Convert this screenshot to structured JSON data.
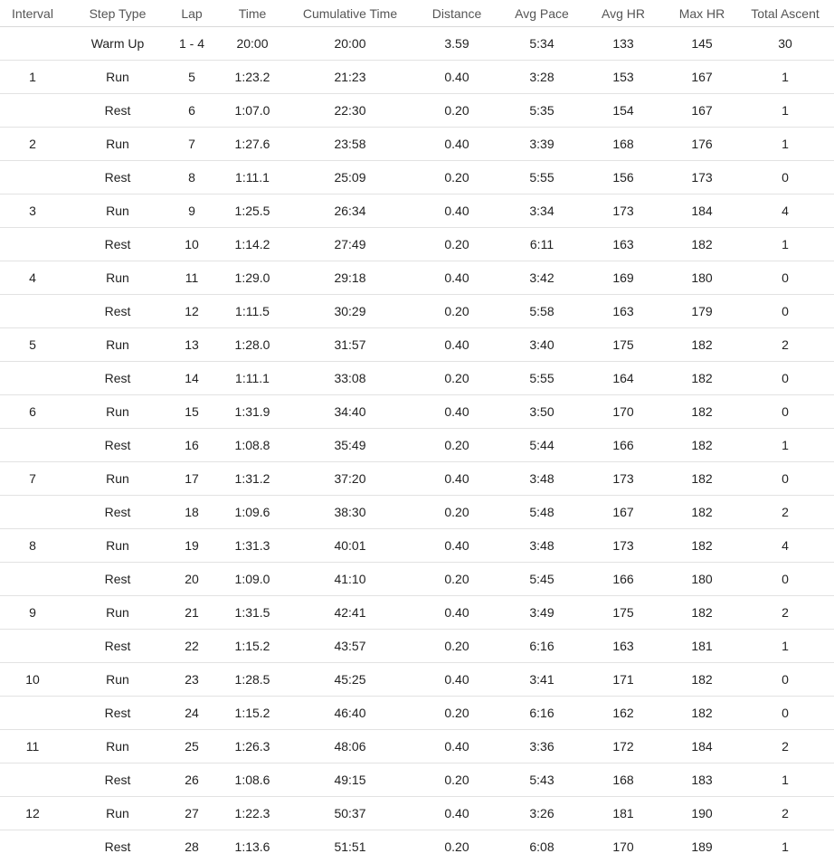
{
  "table": {
    "columns": [
      "Interval",
      "Step Type",
      "Lap",
      "Time",
      "Cumulative Time",
      "Distance",
      "Avg Pace",
      "Avg HR",
      "Max HR",
      "Total Ascent"
    ],
    "rows": [
      [
        "",
        "Warm Up",
        "1 - 4",
        "20:00",
        "20:00",
        "3.59",
        "5:34",
        "133",
        "145",
        "30"
      ],
      [
        "1",
        "Run",
        "5",
        "1:23.2",
        "21:23",
        "0.40",
        "3:28",
        "153",
        "167",
        "1"
      ],
      [
        "",
        "Rest",
        "6",
        "1:07.0",
        "22:30",
        "0.20",
        "5:35",
        "154",
        "167",
        "1"
      ],
      [
        "2",
        "Run",
        "7",
        "1:27.6",
        "23:58",
        "0.40",
        "3:39",
        "168",
        "176",
        "1"
      ],
      [
        "",
        "Rest",
        "8",
        "1:11.1",
        "25:09",
        "0.20",
        "5:55",
        "156",
        "173",
        "0"
      ],
      [
        "3",
        "Run",
        "9",
        "1:25.5",
        "26:34",
        "0.40",
        "3:34",
        "173",
        "184",
        "4"
      ],
      [
        "",
        "Rest",
        "10",
        "1:14.2",
        "27:49",
        "0.20",
        "6:11",
        "163",
        "182",
        "1"
      ],
      [
        "4",
        "Run",
        "11",
        "1:29.0",
        "29:18",
        "0.40",
        "3:42",
        "169",
        "180",
        "0"
      ],
      [
        "",
        "Rest",
        "12",
        "1:11.5",
        "30:29",
        "0.20",
        "5:58",
        "163",
        "179",
        "0"
      ],
      [
        "5",
        "Run",
        "13",
        "1:28.0",
        "31:57",
        "0.40",
        "3:40",
        "175",
        "182",
        "2"
      ],
      [
        "",
        "Rest",
        "14",
        "1:11.1",
        "33:08",
        "0.20",
        "5:55",
        "164",
        "182",
        "0"
      ],
      [
        "6",
        "Run",
        "15",
        "1:31.9",
        "34:40",
        "0.40",
        "3:50",
        "170",
        "182",
        "0"
      ],
      [
        "",
        "Rest",
        "16",
        "1:08.8",
        "35:49",
        "0.20",
        "5:44",
        "166",
        "182",
        "1"
      ],
      [
        "7",
        "Run",
        "17",
        "1:31.2",
        "37:20",
        "0.40",
        "3:48",
        "173",
        "182",
        "0"
      ],
      [
        "",
        "Rest",
        "18",
        "1:09.6",
        "38:30",
        "0.20",
        "5:48",
        "167",
        "182",
        "2"
      ],
      [
        "8",
        "Run",
        "19",
        "1:31.3",
        "40:01",
        "0.40",
        "3:48",
        "173",
        "182",
        "4"
      ],
      [
        "",
        "Rest",
        "20",
        "1:09.0",
        "41:10",
        "0.20",
        "5:45",
        "166",
        "180",
        "0"
      ],
      [
        "9",
        "Run",
        "21",
        "1:31.5",
        "42:41",
        "0.40",
        "3:49",
        "175",
        "182",
        "2"
      ],
      [
        "",
        "Rest",
        "22",
        "1:15.2",
        "43:57",
        "0.20",
        "6:16",
        "163",
        "181",
        "1"
      ],
      [
        "10",
        "Run",
        "23",
        "1:28.5",
        "45:25",
        "0.40",
        "3:41",
        "171",
        "182",
        "0"
      ],
      [
        "",
        "Rest",
        "24",
        "1:15.2",
        "46:40",
        "0.20",
        "6:16",
        "162",
        "182",
        "0"
      ],
      [
        "11",
        "Run",
        "25",
        "1:26.3",
        "48:06",
        "0.40",
        "3:36",
        "172",
        "184",
        "2"
      ],
      [
        "",
        "Rest",
        "26",
        "1:08.6",
        "49:15",
        "0.20",
        "5:43",
        "168",
        "183",
        "1"
      ],
      [
        "12",
        "Run",
        "27",
        "1:22.3",
        "50:37",
        "0.40",
        "3:26",
        "181",
        "190",
        "2"
      ],
      [
        "",
        "Rest",
        "28",
        "1:13.6",
        "51:51",
        "0.20",
        "6:08",
        "170",
        "189",
        "1"
      ]
    ]
  }
}
